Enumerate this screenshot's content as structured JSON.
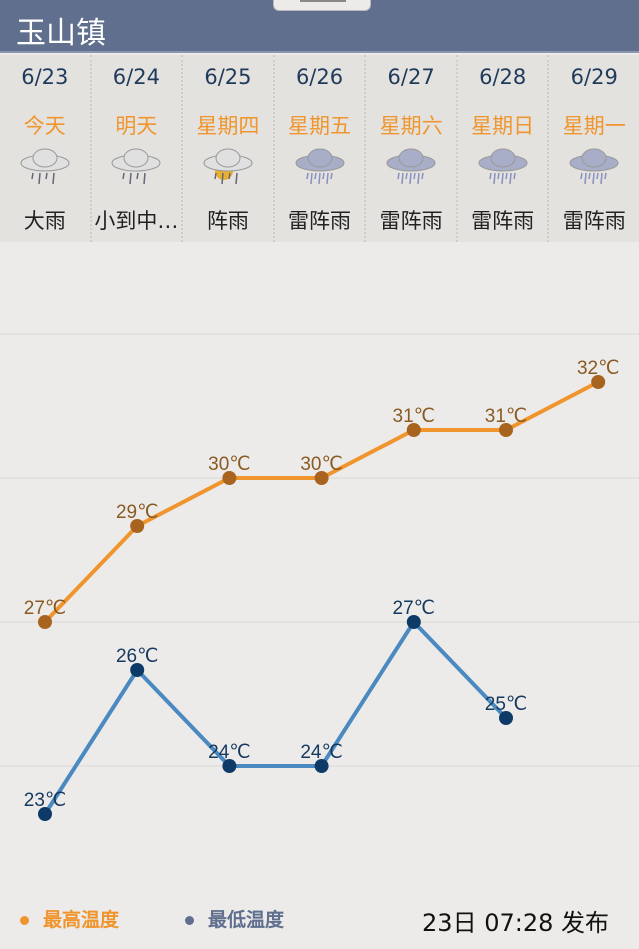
{
  "header": {
    "title": "玉山镇"
  },
  "days": [
    {
      "date": "6/23",
      "weekday": "今天",
      "icon": "heavy-rain-icon",
      "desc": "大雨"
    },
    {
      "date": "6/24",
      "weekday": "明天",
      "icon": "light-to-moderate-rain-icon",
      "desc": "小到中…"
    },
    {
      "date": "6/25",
      "weekday": "星期四",
      "icon": "shower-icon",
      "desc": "阵雨"
    },
    {
      "date": "6/26",
      "weekday": "星期五",
      "icon": "thunder-shower-icon",
      "desc": "雷阵雨"
    },
    {
      "date": "6/27",
      "weekday": "星期六",
      "icon": "thunder-shower-icon",
      "desc": "雷阵雨"
    },
    {
      "date": "6/28",
      "weekday": "星期日",
      "icon": "thunder-shower-icon",
      "desc": "雷阵雨"
    },
    {
      "date": "6/29",
      "weekday": "星期一",
      "icon": "thunder-shower-icon",
      "desc": "雷阵雨"
    }
  ],
  "chart_data": {
    "type": "line",
    "categories": [
      "6/23",
      "6/24",
      "6/25",
      "6/26",
      "6/27",
      "6/28",
      "6/29"
    ],
    "unit": "℃",
    "grid": true,
    "series": [
      {
        "name": "最高温度",
        "values": [
          27,
          29,
          30,
          30,
          31,
          31,
          32
        ],
        "color": "#f0952e",
        "dot_color": "#a8641e",
        "label_color": "#8a5a22"
      },
      {
        "name": "最低温度",
        "values": [
          23,
          26,
          24,
          24,
          27,
          25,
          null
        ],
        "color": "#4a8ac0",
        "dot_color": "#0d3a66",
        "label_color": "#15385e"
      }
    ],
    "legend_position": "bottom-left"
  },
  "legend": {
    "high": "最高温度",
    "low": "最低温度",
    "high_color": "#f0952e",
    "low_color": "#5f6f8d"
  },
  "published": "23日 07:28 发布"
}
